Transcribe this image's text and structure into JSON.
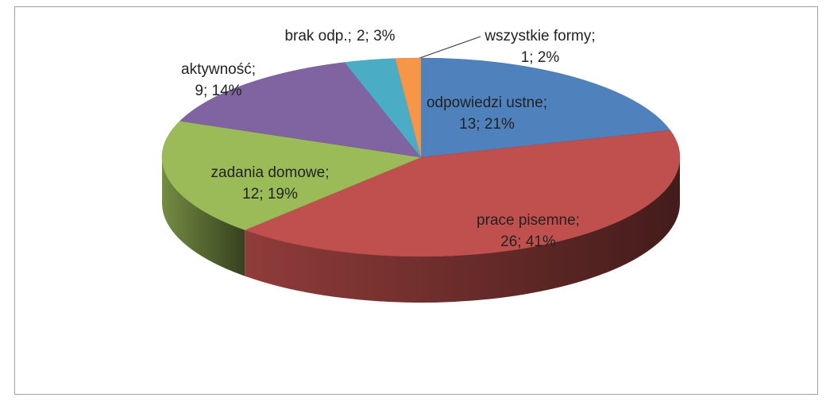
{
  "chart_data": {
    "type": "pie",
    "categories": [
      "odpowiedzi ustne",
      "prace pisemne",
      "zadania domowe",
      "aktywność",
      "brak odp.",
      "wszystkie formy"
    ],
    "values": [
      13,
      26,
      12,
      9,
      2,
      1
    ],
    "value_labels": [
      "13; 21%",
      "26; 41%",
      "12; 19%",
      "9; 14%",
      "2; 3%",
      "1; 2%"
    ],
    "colors": [
      "#4f81bd",
      "#c0504d",
      "#9bbb59",
      "#8064a2",
      "#4bacc6",
      "#f79646"
    ]
  }
}
